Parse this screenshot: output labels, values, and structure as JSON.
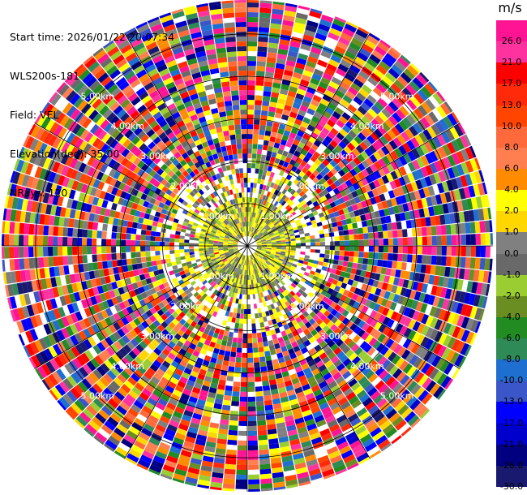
{
  "header": {
    "start_time": "Start time: 2026/01/22 20:07:34",
    "instrument": "WLS200s-181",
    "field": "Field: VEL",
    "elevation": "Elevation(deg): 35.00",
    "nrays": "NRays: 120"
  },
  "colorbar": {
    "unit": "m/s",
    "segments": [
      {
        "label": "26.0",
        "color": "#ff1493"
      },
      {
        "label": "21.0",
        "color": "#ff33a0"
      },
      {
        "label": "17.0",
        "color": "#ff0000"
      },
      {
        "label": "13.0",
        "color": "#ff2a0a"
      },
      {
        "label": "10.0",
        "color": "#ff4500"
      },
      {
        "label": "8.0",
        "color": "#ff6a3d"
      },
      {
        "label": "6.0",
        "color": "#ff7f50"
      },
      {
        "label": "4.0",
        "color": "#ff8c00"
      },
      {
        "label": "2.0",
        "color": "#ffff00"
      },
      {
        "label": "1.0",
        "color": "#ffd700"
      },
      {
        "label": "0.0",
        "color": "#808080"
      },
      {
        "label": "-1.0",
        "color": "#696969"
      },
      {
        "label": "-2.0",
        "color": "#9acd32"
      },
      {
        "label": "-4.0",
        "color": "#6b8e23"
      },
      {
        "label": "-6.0",
        "color": "#228b22"
      },
      {
        "label": "-8.0",
        "color": "#2e8b57"
      },
      {
        "label": "-10.0",
        "color": "#1e6fd0"
      },
      {
        "label": "-13.0",
        "color": "#3a56c8"
      },
      {
        "label": "-17.0",
        "color": "#0000ff"
      },
      {
        "label": "-21.0",
        "color": "#0000cd"
      },
      {
        "label": "-26.0",
        "color": "#000080"
      },
      {
        "label": "-30.0",
        "color": "#191970"
      }
    ]
  },
  "chart_data": {
    "type": "heatmap",
    "projection": "polar PPI",
    "field": "VEL",
    "n_rays": 120,
    "range_rings_km": [
      1.0,
      2.0,
      3.0,
      4.0,
      5.0
    ],
    "range_ring_labels": [
      "1.00km",
      "2.00km",
      "3.00km",
      "4.00km",
      "5.00km"
    ],
    "max_range_km": 5.8,
    "inner_pattern": "mostly yellow/grey/olive (near 0 to +2 m/s)",
    "outer_pattern": "random mixed colors (noise) beyond ~2 km"
  }
}
